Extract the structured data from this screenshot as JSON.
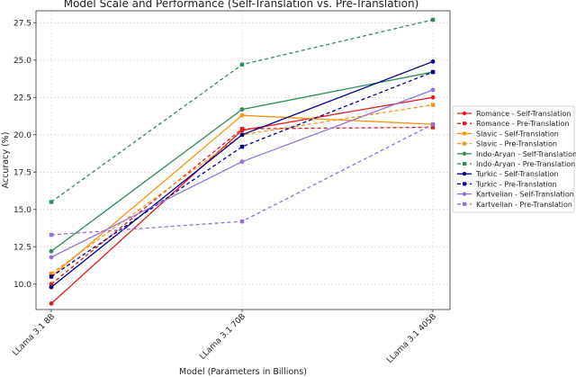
{
  "chart_data": {
    "type": "line",
    "title": "Model Scale and Performance (Self-Translation vs. Pre-Translation)",
    "xlabel": "Model (Parameters in Billions)",
    "ylabel": "Accuracy (%)",
    "categories": [
      "LLama 3.1 8B",
      "LLama 3.1 70B",
      "LLama 3.1 405B"
    ],
    "yticks": [
      "10.0",
      "12.5",
      "15.0",
      "17.5",
      "20.0",
      "22.5",
      "25.0",
      "27.5"
    ],
    "ylim": [
      8.3,
      28.3
    ],
    "grid": true,
    "legend_position": "right",
    "series": [
      {
        "name": "Romance - Self-Translation",
        "values": [
          8.7,
          20.3,
          22.5
        ],
        "color": "#e4191c",
        "dash": false,
        "marker": "circle"
      },
      {
        "name": "Romance - Pre-Translation",
        "values": [
          10.0,
          20.4,
          20.5
        ],
        "color": "#e4191c",
        "dash": true,
        "marker": "square"
      },
      {
        "name": "Slavic - Self-Translation",
        "values": [
          10.5,
          21.3,
          20.7
        ],
        "color": "#fe9110",
        "dash": false,
        "marker": "circle"
      },
      {
        "name": "Slavic - Pre-Translation",
        "values": [
          10.7,
          20.0,
          22.0
        ],
        "color": "#fe9110",
        "dash": true,
        "marker": "square"
      },
      {
        "name": "Indo-Aryan - Self-Translation",
        "values": [
          12.2,
          21.7,
          24.2
        ],
        "color": "#2e8b57",
        "dash": false,
        "marker": "circle"
      },
      {
        "name": "Indo-Aryan - Pre-Translation",
        "values": [
          15.5,
          24.7,
          27.7
        ],
        "color": "#2e8b57",
        "dash": true,
        "marker": "square"
      },
      {
        "name": "Turkic - Self-Translation",
        "values": [
          9.8,
          20.0,
          24.9
        ],
        "color": "#00008b",
        "dash": false,
        "marker": "circle"
      },
      {
        "name": "Turkic - Pre-Translation",
        "values": [
          10.5,
          19.2,
          24.2
        ],
        "color": "#00008b",
        "dash": true,
        "marker": "square"
      },
      {
        "name": "Kartvelian - Self-Translation",
        "values": [
          11.8,
          18.2,
          23.0
        ],
        "color": "#9370db",
        "dash": false,
        "marker": "circle"
      },
      {
        "name": "Kartvelian - Pre-Translation",
        "values": [
          13.3,
          14.2,
          20.7
        ],
        "color": "#9370db",
        "dash": true,
        "marker": "square"
      }
    ]
  }
}
